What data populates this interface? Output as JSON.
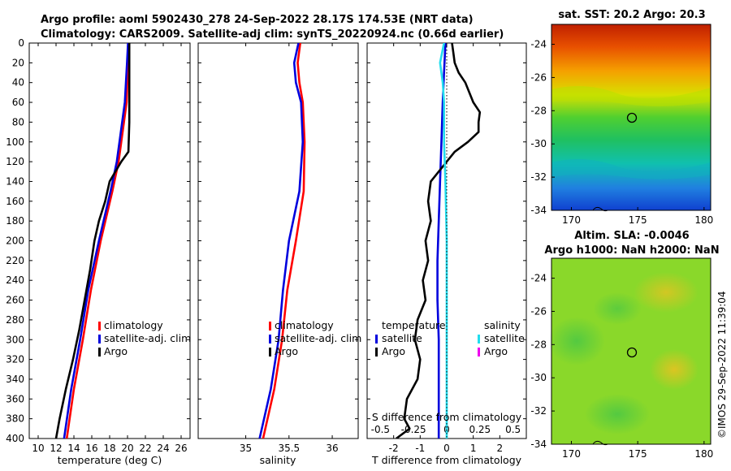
{
  "header": {
    "line1": "Argo profile: aoml 5902430_278 24-Sep-2022 28.17S 174.53E (NRT data)",
    "line2": "Climatology: CARS2009. Satellite-adj clim: synTS_20220924.nc (0.66d earlier)"
  },
  "credit": "©IMOS 29-Sep-2022 11:39:04",
  "colors": {
    "climatology": "#ff0000",
    "satellite": "#0000dd",
    "argo": "#000000",
    "sal_sat": "#22ddee",
    "sal_argo": "#ee00ee"
  },
  "chart_data": [
    {
      "type": "line",
      "id": "temperature",
      "xlabel": "temperature (deg C)",
      "xlim": [
        9,
        27
      ],
      "xticks": [
        "10",
        "12",
        "14",
        "16",
        "18",
        "20",
        "22",
        "24",
        "26"
      ],
      "ylim": [
        0,
        400
      ],
      "yticks": [
        "0",
        "20",
        "40",
        "60",
        "80",
        "100",
        "120",
        "140",
        "160",
        "180",
        "200",
        "220",
        "240",
        "260",
        "280",
        "300",
        "320",
        "340",
        "360",
        "380",
        "400"
      ],
      "legend": [
        "climatology",
        "satellite-adj. clim",
        "Argo"
      ],
      "series": [
        {
          "name": "climatology",
          "depth": [
            0,
            20,
            60,
            80,
            100,
            120,
            150,
            200,
            250,
            300,
            350,
            400
          ],
          "values": [
            20.1,
            20.05,
            19.9,
            19.6,
            19.3,
            19.0,
            18.3,
            17.0,
            15.9,
            15.0,
            14.0,
            13.2
          ]
        },
        {
          "name": "satellite-adj. clim",
          "depth": [
            0,
            20,
            60,
            80,
            100,
            120,
            150,
            200,
            250,
            300,
            350,
            400
          ],
          "values": [
            20.05,
            19.95,
            19.7,
            19.4,
            19.1,
            18.8,
            18.1,
            16.8,
            15.6,
            14.7,
            13.7,
            12.9
          ]
        },
        {
          "name": "Argo",
          "depth": [
            0,
            30,
            80,
            110,
            120,
            140,
            160,
            180,
            200,
            230,
            260,
            290,
            320,
            350,
            380,
            400
          ],
          "values": [
            20.2,
            20.2,
            20.2,
            20.1,
            19.3,
            18.0,
            17.5,
            16.8,
            16.3,
            15.8,
            15.2,
            14.6,
            13.9,
            13.1,
            12.4,
            12.0
          ]
        }
      ]
    },
    {
      "type": "line",
      "id": "salinity",
      "xlabel": "salinity",
      "xlim": [
        34.45,
        36.3
      ],
      "xticks": [
        "35",
        "35.5",
        "36"
      ],
      "ylim": [
        0,
        400
      ],
      "legend": [
        "climatology",
        "satellite-adj. clim",
        "Argo"
      ],
      "series": [
        {
          "name": "climatology",
          "depth": [
            0,
            20,
            40,
            60,
            100,
            150,
            200,
            250,
            300,
            350,
            400
          ],
          "values": [
            35.63,
            35.6,
            35.62,
            35.66,
            35.68,
            35.67,
            35.58,
            35.48,
            35.42,
            35.33,
            35.2
          ]
        },
        {
          "name": "satellite-adj. clim",
          "depth": [
            0,
            20,
            40,
            60,
            100,
            150,
            200,
            250,
            300,
            350,
            400
          ],
          "values": [
            35.61,
            35.56,
            35.58,
            35.64,
            35.66,
            35.62,
            35.5,
            35.43,
            35.38,
            35.29,
            35.16
          ]
        }
      ]
    },
    {
      "type": "line",
      "id": "difference",
      "xlabel": "T difference from climatology",
      "xlabel2": "S difference from climatology",
      "xlim": [
        -3,
        3
      ],
      "xticks": [
        "-2",
        "-1",
        "0",
        "1",
        "2"
      ],
      "xticks2": [
        "-0.5",
        "-0.25",
        "0",
        "0.25",
        "0.5"
      ],
      "ylim": [
        0,
        400
      ],
      "legend_temperature_title": "temperature",
      "legend_salinity_title": "salinity",
      "legend_entries": [
        "satellite",
        "Argo"
      ],
      "series": [
        {
          "name": "T satellite",
          "depth": [
            0,
            30,
            60,
            100,
            140,
            180,
            220,
            260,
            300,
            350,
            400
          ],
          "values": [
            -0.05,
            -0.1,
            -0.15,
            -0.2,
            -0.25,
            -0.3,
            -0.35,
            -0.35,
            -0.3,
            -0.3,
            -0.3
          ]
        },
        {
          "name": "T Argo",
          "depth": [
            0,
            10,
            20,
            30,
            40,
            60,
            70,
            80,
            90,
            100,
            110,
            120,
            140,
            160,
            180,
            200,
            220,
            240,
            260,
            280,
            300,
            320,
            340,
            360,
            380,
            390,
            400
          ],
          "values": [
            0.2,
            0.25,
            0.3,
            0.45,
            0.7,
            1.0,
            1.25,
            1.2,
            1.2,
            0.8,
            0.3,
            0.0,
            -0.6,
            -0.7,
            -0.6,
            -0.8,
            -0.7,
            -0.9,
            -0.8,
            -1.1,
            -1.2,
            -1.0,
            -1.1,
            -1.5,
            -1.6,
            -1.4,
            -1.9
          ]
        },
        {
          "name": "S satellite",
          "depth": [
            0,
            20,
            40,
            60,
            80,
            100,
            140,
            200,
            300,
            400
          ],
          "values": [
            -0.02,
            -0.05,
            -0.03,
            -0.02,
            -0.02,
            -0.02,
            -0.01,
            0.0,
            0.0,
            0.0
          ]
        }
      ]
    },
    {
      "type": "heatmap",
      "id": "sst-map",
      "title": "sat. SST: 20.2 Argo: 20.3",
      "xticks": [
        "170",
        "175",
        "180"
      ],
      "yticks": [
        "-24",
        "-26",
        "-28",
        "-30",
        "-32",
        "-34"
      ],
      "marker": {
        "lon": 174.53,
        "lat": -28.17
      }
    },
    {
      "type": "heatmap",
      "id": "sla-map",
      "title": "Altim. SLA: -0.0046",
      "title2": "Argo h1000: NaN h2000: NaN",
      "xticks": [
        "170",
        "175",
        "180"
      ],
      "yticks": [
        "-24",
        "-26",
        "-28",
        "-30",
        "-32",
        "-34"
      ],
      "marker": {
        "lon": 174.53,
        "lat": -28.17
      }
    }
  ]
}
